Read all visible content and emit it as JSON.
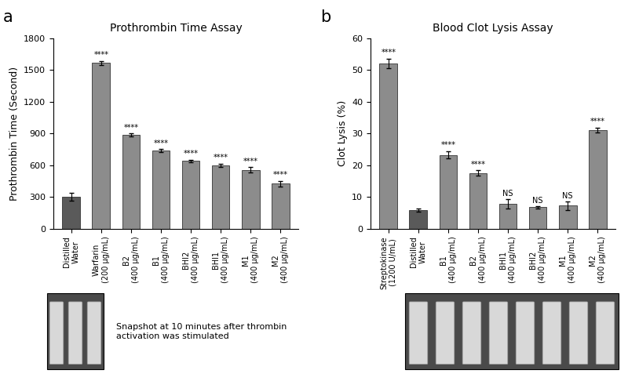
{
  "chart_data": [
    {
      "type": "bar",
      "panel_label": "a",
      "title": "Prothrombin Time Assay",
      "y_label": "Prothrombin Time (Second)",
      "categories": [
        "Distilled\nWater",
        "Warfarin\n(200 µg/mL)",
        "B2\n(400 µg/mL)",
        "B1\n(400 µg/mL)",
        "BHI2\n(400 µg/mL)",
        "BHI1\n(400 µg/mL)",
        "M1\n(400 µg/mL)",
        "M2\n(400 µg/mL)"
      ],
      "values": [
        300,
        1565,
        885,
        735,
        640,
        600,
        555,
        425
      ],
      "errors": [
        35,
        20,
        15,
        15,
        12,
        15,
        25,
        25
      ],
      "significance": [
        null,
        "****",
        "****",
        "****",
        "****",
        "****",
        "****",
        "****"
      ],
      "colors": [
        "#5a5a5a",
        "#8c8c8c",
        "#8c8c8c",
        "#8c8c8c",
        "#8c8c8c",
        "#8c8c8c",
        "#8c8c8c",
        "#8c8c8c"
      ],
      "ylim": [
        0,
        1800
      ],
      "yticks": [
        0,
        300,
        600,
        900,
        1200,
        1500,
        1800
      ],
      "caption": "Snapshot at 10 minutes after thrombin\nactivation was stimulated"
    },
    {
      "type": "bar",
      "panel_label": "b",
      "title": "Blood Clot Lysis Assay",
      "y_label": "Clot Lysis (%)",
      "categories": [
        "Streptokinase\n(1200 U/mL)",
        "Distilled\nWater",
        "B1\n(400 µg/mL)",
        "B2\n(400 µg/mL)",
        "BHI1\n(400 µg/mL)",
        "BHI2\n(400 µg/mL)",
        "M1\n(400 µg/mL)",
        "M2\n(400 µg/mL)"
      ],
      "values": [
        52,
        5.8,
        23.2,
        17.5,
        7.8,
        6.7,
        7.2,
        31
      ],
      "errors": [
        1.5,
        0.5,
        1.2,
        0.8,
        1.5,
        0.3,
        1.3,
        0.8
      ],
      "significance": [
        "****",
        null,
        "****",
        "****",
        "NS",
        "NS",
        "NS",
        "****"
      ],
      "colors": [
        "#8c8c8c",
        "#5a5a5a",
        "#8c8c8c",
        "#8c8c8c",
        "#8c8c8c",
        "#8c8c8c",
        "#8c8c8c",
        "#8c8c8c"
      ],
      "ylim": [
        0,
        60
      ],
      "yticks": [
        0,
        10,
        20,
        30,
        40,
        50,
        60
      ]
    }
  ]
}
